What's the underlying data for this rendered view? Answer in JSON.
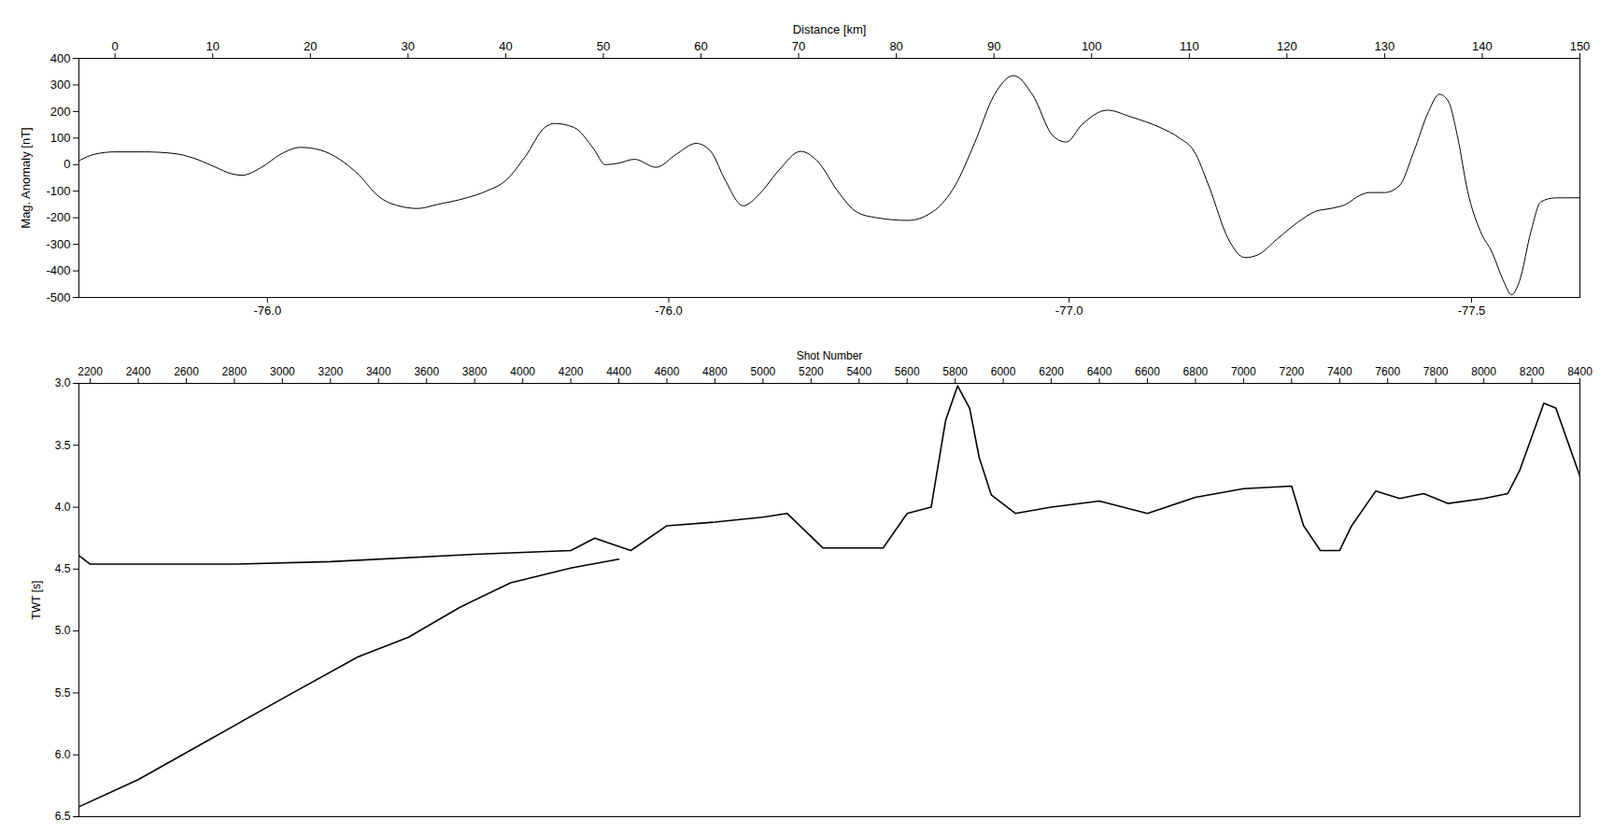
{
  "chart_data": [
    {
      "type": "line",
      "x_label": "Distance [km]",
      "y_label": "Mag. Anomaly [nT]",
      "color": "#000000",
      "xlim": [
        -3.7,
        150
      ],
      "xticks": [
        0,
        10,
        20,
        30,
        40,
        50,
        60,
        70,
        80,
        90,
        100,
        110,
        120,
        130,
        140,
        150
      ],
      "x2ticks": [
        {
          "value": 15.6,
          "label": "-76.0"
        },
        {
          "value": 56.7,
          "label": "-76.0"
        },
        {
          "value": 97.7,
          "label": "-77.0"
        },
        {
          "value": 138.9,
          "label": "-77.5"
        }
      ],
      "ylim": [
        -500,
        400
      ],
      "yticks": [
        -500,
        -400,
        -300,
        -200,
        -100,
        0,
        100,
        200,
        300,
        400
      ],
      "x": [
        -3.7,
        -2,
        0,
        3,
        6,
        8,
        10,
        12,
        13,
        15,
        17,
        19,
        21,
        23,
        25,
        27,
        29,
        31,
        33,
        36,
        38,
        40,
        42,
        44,
        45,
        47,
        49,
        50.2,
        51.5,
        53.2,
        55.4,
        57.5,
        59.5,
        61,
        62.5,
        64.3,
        66,
        68,
        70.2,
        72,
        74,
        76,
        78,
        81.2,
        84,
        86,
        88,
        90,
        92,
        94,
        96,
        97.4,
        99,
        101.6,
        104,
        107,
        109,
        110.5,
        112,
        114,
        115.7,
        117,
        119,
        121,
        123,
        124.5,
        126,
        127.5,
        128.5,
        130,
        131.5,
        133,
        134.5,
        135.6,
        136.5,
        137.5,
        138.5,
        139.8,
        141,
        142.2,
        143,
        143.8,
        145,
        146,
        147.5,
        150
      ],
      "values": [
        15,
        40,
        48,
        48,
        42,
        25,
        -5,
        -35,
        -40,
        -10,
        40,
        65,
        55,
        20,
        -40,
        -120,
        -155,
        -165,
        -150,
        -125,
        -100,
        -60,
        30,
        140,
        155,
        140,
        60,
        0,
        5,
        20,
        -10,
        40,
        80,
        50,
        -60,
        -155,
        -110,
        -20,
        50,
        10,
        -100,
        -180,
        -200,
        -210,
        -170,
        -80,
        80,
        260,
        335,
        260,
        110,
        85,
        150,
        205,
        180,
        140,
        100,
        50,
        -80,
        -280,
        -350,
        -340,
        -280,
        -220,
        -175,
        -165,
        -150,
        -115,
        -105,
        -105,
        -80,
        50,
        200,
        265,
        240,
        100,
        -100,
        -250,
        -330,
        -440,
        -490,
        -440,
        -250,
        -140,
        -125,
        -125
      ]
    },
    {
      "type": "line",
      "x_label": "Shot Number",
      "y_label": "TWT [s]",
      "xlim": [
        2153,
        8400
      ],
      "xticks": [
        2200,
        2400,
        2600,
        2800,
        3000,
        3200,
        3400,
        3600,
        3800,
        4000,
        4200,
        4400,
        4600,
        4800,
        5000,
        5200,
        5400,
        5600,
        5800,
        6000,
        6200,
        6400,
        6600,
        6800,
        7000,
        7200,
        7400,
        7600,
        7800,
        8000,
        8200,
        8400
      ],
      "ylim": [
        6.5,
        3.0
      ],
      "yticks": [
        {
          "value": 3.0,
          "label": "3.0"
        },
        3.5,
        {
          "value": 4.0,
          "label": "4.0"
        },
        4.5,
        {
          "value": 5.0,
          "label": "5.0"
        },
        5.5,
        {
          "value": 6.0,
          "label": "6.0"
        },
        6.5
      ],
      "series": [
        {
          "color": "#000000",
          "x": [
            2153,
            2200,
            2400,
            2800,
            3200,
            3800,
            4200,
            4300,
            4450,
            4600,
            4800,
            5000,
            5100,
            5250,
            5500,
            5600,
            5700,
            5760,
            5810,
            5860,
            5900,
            5950,
            6050,
            6200,
            6400,
            6600,
            6800,
            7000,
            7200,
            7250,
            7320,
            7400,
            7450,
            7550,
            7650,
            7750,
            7850,
            8000,
            8100,
            8150,
            8250,
            8300,
            8400
          ],
          "values": [
            4.39,
            4.46,
            4.46,
            4.46,
            4.44,
            4.38,
            4.35,
            4.25,
            4.35,
            4.15,
            4.12,
            4.08,
            4.05,
            4.33,
            4.33,
            4.05,
            4.0,
            3.3,
            3.02,
            3.2,
            3.6,
            3.9,
            4.05,
            4.0,
            3.95,
            4.05,
            3.92,
            3.85,
            3.83,
            4.15,
            4.35,
            4.35,
            4.15,
            3.87,
            3.93,
            3.89,
            3.97,
            3.93,
            3.89,
            3.7,
            3.16,
            3.2,
            3.75
          ]
        },
        {
          "color": "#000000",
          "x": [
            2153,
            2400,
            2675,
            3015,
            3313,
            3525,
            3737,
            3950,
            4204,
            4400
          ],
          "values": [
            6.42,
            6.2,
            5.9,
            5.53,
            5.21,
            5.05,
            4.81,
            4.61,
            4.49,
            4.42
          ]
        }
      ]
    }
  ]
}
